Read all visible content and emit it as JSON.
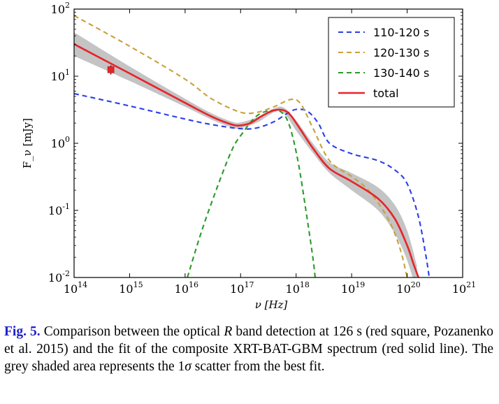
{
  "chart_data": {
    "type": "line",
    "xlabel": "ν [Hz]",
    "ylabel": "F_ν [mJy]",
    "xscale": "log",
    "yscale": "log",
    "xlim": [
      100000000000000.0,
      1e+21
    ],
    "ylim": [
      0.01,
      100
    ],
    "x_ticks": [
      {
        "base": "10",
        "exp": "14",
        "value": 100000000000000.0
      },
      {
        "base": "10",
        "exp": "15",
        "value": 1000000000000000.0
      },
      {
        "base": "10",
        "exp": "16",
        "value": 1e+16
      },
      {
        "base": "10",
        "exp": "17",
        "value": 1e+17
      },
      {
        "base": "10",
        "exp": "18",
        "value": 1e+18
      },
      {
        "base": "10",
        "exp": "19",
        "value": 1e+19
      },
      {
        "base": "10",
        "exp": "20",
        "value": 1e+20
      },
      {
        "base": "10",
        "exp": "21",
        "value": 1e+21
      }
    ],
    "y_ticks": [
      {
        "base": "10",
        "exp": "-2",
        "value": 0.01
      },
      {
        "base": "10",
        "exp": "-1",
        "value": 0.1
      },
      {
        "base": "10",
        "exp": "0",
        "value": 1
      },
      {
        "base": "10",
        "exp": "1",
        "value": 10
      },
      {
        "base": "10",
        "exp": "2",
        "value": 100
      }
    ],
    "legend_position": "top-right",
    "series": [
      {
        "name": "110-120 s",
        "style": "dashed",
        "color": "#2b3fe8",
        "x": [
          100000000000000.0,
          1000000000000000.0,
          1e+16,
          3e+16,
          1e+17,
          2e+17,
          4e+17,
          7e+17,
          1e+18,
          1.6e+18,
          2.5e+18,
          4e+18,
          1e+19,
          3e+19,
          6e+19,
          1e+20,
          1.6e+20,
          2.2e+20,
          2.5e+20
        ],
        "y": [
          5.5,
          3.6,
          2.3,
          1.9,
          1.65,
          1.7,
          2.1,
          2.8,
          3.2,
          3.0,
          2.0,
          1.0,
          0.7,
          0.55,
          0.4,
          0.25,
          0.08,
          0.02,
          0.01
        ]
      },
      {
        "name": "120-130 s",
        "style": "dashed",
        "color": "#c9a03a",
        "x": [
          100000000000000.0,
          1000000000000000.0,
          1e+16,
          3e+16,
          1e+17,
          2e+17,
          4e+17,
          8e+17,
          1.2e+18,
          2e+18,
          4e+18,
          1e+19,
          2e+19,
          4e+19,
          6e+19,
          8e+19,
          1e+20
        ],
        "y": [
          80,
          28,
          9,
          4.6,
          2.9,
          2.9,
          3.5,
          4.5,
          3.9,
          1.7,
          0.55,
          0.32,
          0.2,
          0.09,
          0.045,
          0.022,
          0.01
        ]
      },
      {
        "name": "130-140 s",
        "style": "dashed",
        "color": "#2a9a2a",
        "x": [
          1.1e+16,
          2e+16,
          4e+16,
          7e+16,
          1e+17,
          2e+17,
          4e+17,
          6e+17,
          8e+17,
          1.1e+18,
          1.5e+18,
          2e+18,
          2.2e+18
        ],
        "y": [
          0.01,
          0.05,
          0.25,
          0.8,
          1.3,
          2.6,
          3.1,
          2.7,
          1.6,
          0.5,
          0.1,
          0.02,
          0.01
        ]
      },
      {
        "name": "total",
        "style": "solid",
        "color": "#e8232a",
        "x": [
          100000000000000.0,
          1000000000000000.0,
          1e+16,
          3e+16,
          7e+16,
          1e+17,
          1.5e+17,
          2.5e+17,
          4e+17,
          6e+17,
          8e+17,
          1.2e+18,
          2e+18,
          4e+18,
          1e+19,
          3e+19,
          6e+19,
          1e+20,
          1.3e+20,
          1.6e+20
        ],
        "y": [
          30,
          11,
          4.0,
          2.5,
          1.9,
          1.85,
          2.0,
          2.6,
          3.1,
          3.1,
          2.6,
          1.6,
          0.85,
          0.42,
          0.27,
          0.15,
          0.075,
          0.03,
          0.016,
          0.01
        ]
      }
    ],
    "scatter_band": {
      "x": [
        100000000000000.0,
        1000000000000000.0,
        1e+16,
        3e+16,
        7e+16,
        1e+17,
        2e+17,
        4e+17,
        6e+17,
        1e+18,
        2e+18,
        4e+18,
        1e+19,
        3e+19,
        6e+19,
        1e+20,
        1.5e+20
      ],
      "upper": [
        45,
        14,
        4.6,
        2.8,
        2.1,
        2.05,
        2.45,
        3.3,
        3.4,
        2.2,
        1.0,
        0.52,
        0.36,
        0.22,
        0.12,
        0.05,
        0.015
      ],
      "lower": [
        20,
        8.5,
        3.5,
        2.25,
        1.72,
        1.68,
        2.05,
        2.9,
        2.85,
        1.55,
        0.72,
        0.36,
        0.2,
        0.1,
        0.045,
        0.018,
        0.006
      ],
      "color": "#c4c4c4"
    },
    "points": [
      {
        "label": "optical R",
        "x": 460000000000000.0,
        "y": 12.5,
        "yerr_low": 10.6,
        "yerr_high": 14.5,
        "color": "#e8232a",
        "marker": "square"
      }
    ]
  },
  "caption": {
    "label": "Fig. 5.",
    "text_1": " Comparison between the optical ",
    "italic_1": "R",
    "text_2": " band detection at 126 s (red square, Pozanenko et al. 2015) and the fit of the composite XRT-BAT-GBM spectrum (red solid line). The grey shaded area represents the 1",
    "sigma": "σ",
    "text_3": " scatter from the best fit."
  }
}
